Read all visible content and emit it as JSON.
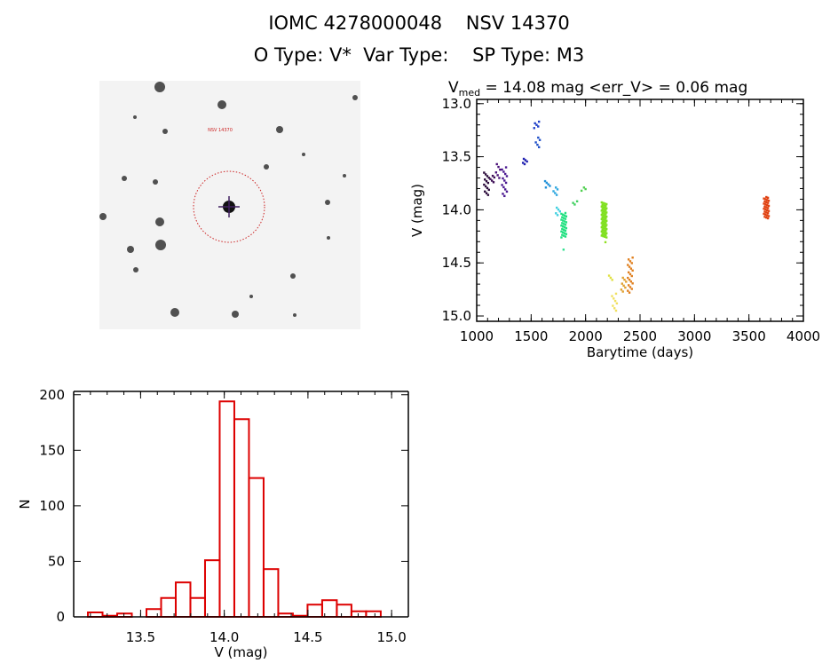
{
  "header": {
    "title": "IOMC 4278000048    NSV 14370",
    "subtitle": "O Type: V*  Var Type:    SP Type: M3"
  },
  "image_panel": {
    "target_label": "NSV 14370"
  },
  "chart_data": [
    {
      "type": "scatter",
      "title_prefix": "V",
      "title_subscript": "med",
      "title_rest": " = 14.08 mag <err_V> = 0.06 mag",
      "xlabel": "Barytime (days)",
      "ylabel": "V (mag)",
      "xlim": [
        1000,
        4000
      ],
      "ylim": [
        12.96,
        15.05
      ],
      "y_inverted": true,
      "xticks": [
        "1000",
        "1500",
        "2000",
        "2500",
        "3000",
        "3500",
        "4000"
      ],
      "yticks": [
        "13.0",
        "13.5",
        "14.0",
        "14.5",
        "15.0"
      ],
      "clusters": [
        {
          "x": 1090,
          "y": [
            13.65,
            13.86
          ],
          "n": 14,
          "color": "#2a0a3a"
        },
        {
          "x": 1140,
          "y": [
            13.68,
            13.74
          ],
          "n": 5,
          "color": "#3c0d55"
        },
        {
          "x": 1200,
          "y": [
            13.57,
            13.7
          ],
          "n": 6,
          "color": "#4a1078"
        },
        {
          "x": 1255,
          "y": [
            13.6,
            13.87
          ],
          "n": 14,
          "color": "#4a1890"
        },
        {
          "x": 1440,
          "y": [
            13.52,
            13.57
          ],
          "n": 5,
          "color": "#2020b0"
        },
        {
          "x": 1550,
          "y": [
            13.17,
            13.23
          ],
          "n": 5,
          "color": "#2040c8"
        },
        {
          "x": 1565,
          "y": [
            13.32,
            13.41
          ],
          "n": 5,
          "color": "#2050c8"
        },
        {
          "x": 1650,
          "y": [
            13.73,
            13.79
          ],
          "n": 5,
          "color": "#2090d8"
        },
        {
          "x": 1720,
          "y": [
            13.79,
            13.86
          ],
          "n": 5,
          "color": "#30a8e0"
        },
        {
          "x": 1750,
          "y": [
            13.98,
            14.05
          ],
          "n": 5,
          "color": "#40d0e0"
        },
        {
          "x": 1800,
          "y": [
            14.03,
            14.26
          ],
          "n": 30,
          "color": "#20e080"
        },
        {
          "x": 1805,
          "y": [
            14.37,
            14.38
          ],
          "n": 1,
          "color": "#30e090"
        },
        {
          "x": 1900,
          "y": [
            13.92,
            13.95
          ],
          "n": 3,
          "color": "#40d060"
        },
        {
          "x": 1985,
          "y": [
            13.79,
            13.82
          ],
          "n": 3,
          "color": "#50d050"
        },
        {
          "x": 2170,
          "y": [
            13.93,
            14.26
          ],
          "n": 60,
          "color": "#80e020"
        },
        {
          "x": 2175,
          "y": [
            14.3,
            14.31
          ],
          "n": 1,
          "color": "#90e020"
        },
        {
          "x": 2230,
          "y": [
            14.62,
            14.66
          ],
          "n": 3,
          "color": "#e0e040"
        },
        {
          "x": 2265,
          "y": [
            14.79,
            14.95
          ],
          "n": 8,
          "color": "#f0e060"
        },
        {
          "x": 2350,
          "y": [
            14.64,
            14.77
          ],
          "n": 8,
          "color": "#e0a030"
        },
        {
          "x": 2410,
          "y": [
            14.45,
            14.78
          ],
          "n": 20,
          "color": "#e08020"
        },
        {
          "x": 3660,
          "y": [
            13.88,
            14.08
          ],
          "n": 30,
          "color": "#e04010"
        }
      ]
    },
    {
      "type": "bar",
      "xlabel": "V (mag)",
      "ylabel": "N",
      "xlim": [
        13.1,
        15.1
      ],
      "ylim": [
        0,
        203
      ],
      "xticks": [
        "13.5",
        "14.0",
        "14.5",
        "15.0"
      ],
      "yticks": [
        "0",
        "50",
        "100",
        "150",
        "200"
      ],
      "bin_start": 13.185,
      "bin_width": 0.0875,
      "values": [
        4,
        1,
        3,
        0,
        7,
        17,
        31,
        17,
        51,
        194,
        178,
        125,
        43,
        3,
        1,
        11,
        15,
        11,
        5,
        5
      ],
      "color": "#dd0000"
    }
  ]
}
